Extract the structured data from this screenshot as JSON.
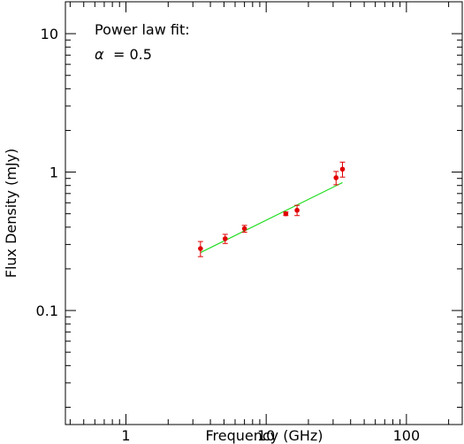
{
  "chart_data": {
    "type": "scatter",
    "xlabel": "Frequency (GHz)",
    "ylabel": "Flux Density (mJy)",
    "xscale": "log",
    "yscale": "log",
    "xlim": [
      0.37,
      250
    ],
    "ylim": [
      0.015,
      17
    ],
    "x_tick_labels": [
      {
        "value": 1,
        "label": "1"
      },
      {
        "value": 10,
        "label": "10"
      },
      {
        "value": 100,
        "label": "100"
      }
    ],
    "y_tick_labels": [
      {
        "value": 0.1,
        "label": "0.1"
      },
      {
        "value": 1,
        "label": "1"
      },
      {
        "value": 10,
        "label": "10"
      }
    ],
    "grid": false,
    "series": [
      {
        "kind": "errorbar",
        "color": "#e00000",
        "points": [
          {
            "x": 3.4,
            "y": 0.28,
            "yerr_low": 0.035,
            "yerr_high": 0.035
          },
          {
            "x": 5.1,
            "y": 0.33,
            "yerr_low": 0.025,
            "yerr_high": 0.025
          },
          {
            "x": 7.0,
            "y": 0.39,
            "yerr_low": 0.022,
            "yerr_high": 0.022
          },
          {
            "x": 13.8,
            "y": 0.5,
            "yerr_low": 0.015,
            "yerr_high": 0.015
          },
          {
            "x": 16.6,
            "y": 0.53,
            "yerr_low": 0.045,
            "yerr_high": 0.045
          },
          {
            "x": 31.5,
            "y": 0.91,
            "yerr_low": 0.1,
            "yerr_high": 0.1
          },
          {
            "x": 35.0,
            "y": 1.05,
            "yerr_low": 0.13,
            "yerr_high": 0.13
          }
        ]
      },
      {
        "kind": "fit-line",
        "color": "#22dd22",
        "x": [
          3.4,
          35.0
        ],
        "y": [
          0.262,
          0.84
        ]
      }
    ],
    "annotations": {
      "line1": "Power law fit:",
      "alpha_symbol": "α",
      "alpha_text": "= 0.5"
    }
  }
}
